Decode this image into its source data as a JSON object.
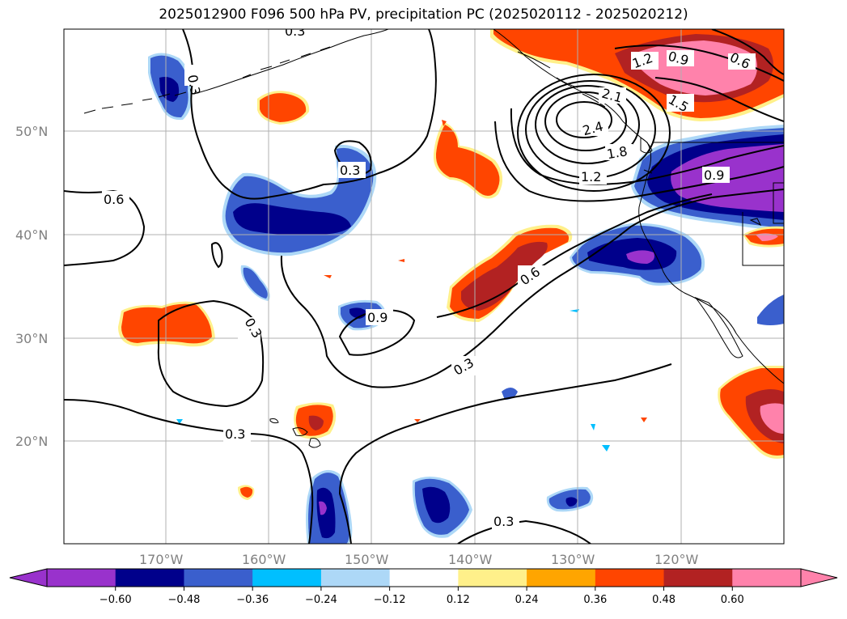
{
  "title": "2025012900 F096 500 hPa PV, precipitation PC (2025020112 - 2025020212)",
  "map": {
    "lat_labels": [
      "50°N",
      "40°N",
      "30°N",
      "20°N"
    ],
    "lon_labels": [
      "170°W",
      "160°W",
      "150°W",
      "140°W",
      "130°W",
      "120°W"
    ],
    "contour_labels": [
      "0.3",
      "0.3",
      "0.6",
      "0.3",
      "0.9",
      "0.3",
      "0.3",
      "0.6",
      "0.3",
      "0.3",
      "2.1",
      "2.4",
      "1.8",
      "1.5",
      "1.2",
      "1.2",
      "0.9",
      "0.9",
      "0.6"
    ],
    "colors": {
      "neg_060": "#9932cc",
      "neg_048": "#00008b",
      "neg_036": "#3a5fcd",
      "neg_024": "#00bfff",
      "neg_012": "#add8f7",
      "zero": "#ffffff",
      "pos_012": "#fff08a",
      "pos_024": "#ffa500",
      "pos_036": "#ff4500",
      "pos_048": "#b22222",
      "pos_060": "#ff82ab"
    }
  },
  "colorbar": {
    "ticks": [
      "−0.60",
      "−0.48",
      "−0.36",
      "−0.24",
      "−0.12",
      "0.12",
      "0.24",
      "0.36",
      "0.48",
      "0.60"
    ],
    "bins": [
      "#9932cc",
      "#00008b",
      "#3a5fcd",
      "#00bfff",
      "#add8f7",
      "#ffffff",
      "#fff08a",
      "#ffa500",
      "#ff4500",
      "#b22222",
      "#ff82ab"
    ]
  }
}
